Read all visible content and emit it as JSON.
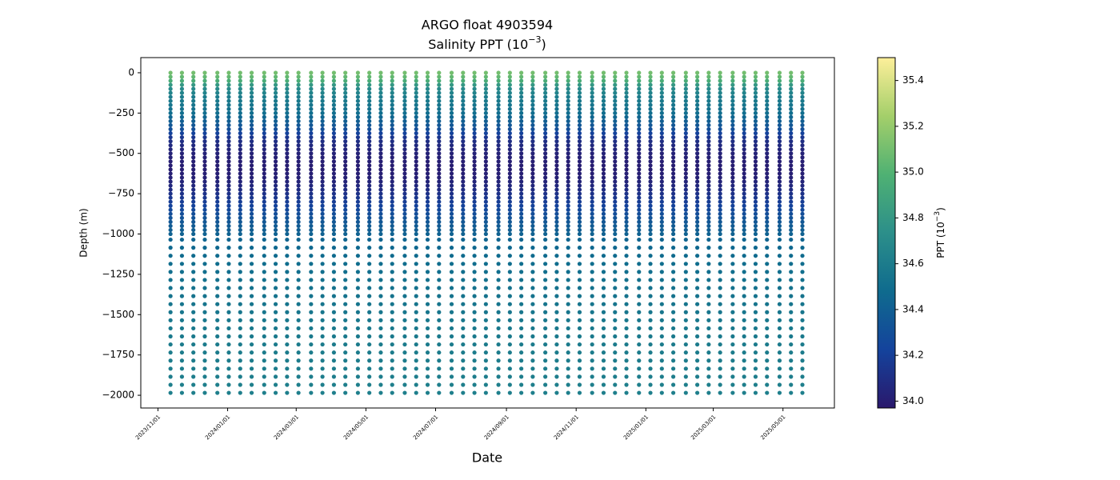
{
  "chart_data": {
    "type": "scatter",
    "title": "ARGO float 4903594",
    "subtitle": {
      "text": "Salinity PPT (10",
      "sup": "−3",
      "end": ")"
    },
    "x_label": "Date",
    "y_label": "Depth (m)",
    "colorbar_label": {
      "text": "PPT (10",
      "sup": "−3",
      "end": ")"
    },
    "x": [
      "2023-11-12",
      "2023-11-22",
      "2023-12-02",
      "2023-12-12",
      "2023-12-23",
      "2024-01-02",
      "2024-01-12",
      "2024-01-22",
      "2024-02-02",
      "2024-02-12",
      "2024-02-22",
      "2024-03-03",
      "2024-03-14",
      "2024-03-24",
      "2024-04-03",
      "2024-04-13",
      "2024-04-24",
      "2024-05-04",
      "2024-05-14",
      "2024-05-24",
      "2024-06-04",
      "2024-06-14",
      "2024-06-24",
      "2024-07-04",
      "2024-07-15",
      "2024-07-25",
      "2024-08-04",
      "2024-08-14",
      "2024-08-25",
      "2024-09-04",
      "2024-09-14",
      "2024-09-24",
      "2024-10-05",
      "2024-10-15",
      "2024-10-25",
      "2024-11-04",
      "2024-11-15",
      "2024-11-25",
      "2024-12-05",
      "2024-12-15",
      "2024-12-26",
      "2025-01-05",
      "2025-01-15",
      "2025-01-25",
      "2025-02-05",
      "2025-02-15",
      "2025-02-25",
      "2025-03-07",
      "2025-03-18",
      "2025-03-28",
      "2025-04-07",
      "2025-04-17",
      "2025-04-28",
      "2025-05-08",
      "2025-05-18"
    ],
    "depths": [
      0,
      -25,
      -50,
      -75,
      -100,
      -125,
      -150,
      -175,
      -200,
      -225,
      -250,
      -275,
      -300,
      -325,
      -350,
      -375,
      -400,
      -425,
      -450,
      -475,
      -500,
      -525,
      -550,
      -575,
      -600,
      -625,
      -650,
      -675,
      -700,
      -725,
      -750,
      -775,
      -800,
      -825,
      -850,
      -875,
      -900,
      -925,
      -950,
      -975,
      -1000,
      -1035,
      -1085,
      -1135,
      -1185,
      -1235,
      -1285,
      -1335,
      -1385,
      -1435,
      -1485,
      -1535,
      -1585,
      -1635,
      -1685,
      -1735,
      -1785,
      -1835,
      -1885,
      -1935,
      -1985
    ],
    "salinity": [
      35.1,
      35.05,
      34.95,
      34.8,
      34.7,
      34.65,
      34.6,
      34.58,
      34.55,
      34.52,
      34.5,
      34.45,
      34.4,
      34.35,
      34.3,
      34.22,
      34.15,
      34.1,
      34.07,
      34.05,
      34.03,
      34.02,
      34.01,
      34.0,
      34.0,
      34.01,
      34.02,
      34.04,
      34.06,
      34.09,
      34.12,
      34.15,
      34.19,
      34.22,
      34.26,
      34.29,
      34.32,
      34.35,
      34.38,
      34.4,
      34.42,
      34.44,
      34.46,
      34.48,
      34.5,
      34.51,
      34.52,
      34.53,
      34.54,
      34.55,
      34.56,
      34.57,
      34.58,
      34.58,
      34.59,
      34.6,
      34.6,
      34.61,
      34.61,
      34.62,
      34.62
    ],
    "xlim": [
      "2023-10-17",
      "2025-06-15"
    ],
    "xticks": [
      {
        "value": "2023-11-01",
        "label": "2023/11/01"
      },
      {
        "value": "2024-01-01",
        "label": "2024/01/01"
      },
      {
        "value": "2024-03-01",
        "label": "2024/03/01"
      },
      {
        "value": "2024-05-01",
        "label": "2024/05/01"
      },
      {
        "value": "2024-07-01",
        "label": "2024/07/01"
      },
      {
        "value": "2024-09-01",
        "label": "2024/09/01"
      },
      {
        "value": "2024-11-01",
        "label": "2024/11/01"
      },
      {
        "value": "2025-01-01",
        "label": "2025/01/01"
      },
      {
        "value": "2025-03-01",
        "label": "2025/03/01"
      },
      {
        "value": "2025-05-01",
        "label": "2025/05/01"
      }
    ],
    "ylim": [
      -2079,
      94
    ],
    "yticks": [
      {
        "value": -2000,
        "label": "−2000"
      },
      {
        "value": -1750,
        "label": "−1750"
      },
      {
        "value": -1500,
        "label": "−1500"
      },
      {
        "value": -1250,
        "label": "−1250"
      },
      {
        "value": -1000,
        "label": "−1000"
      },
      {
        "value": -750,
        "label": "−750"
      },
      {
        "value": -500,
        "label": "−500"
      },
      {
        "value": -250,
        "label": "−250"
      },
      0
    ],
    "clim": [
      33.97,
      35.5
    ],
    "cticks": [
      {
        "value": 34.0,
        "label": "34.0"
      },
      34.2,
      34.4,
      34.6,
      34.8,
      {
        "value": 35.0,
        "label": "35.0"
      },
      35.2,
      35.4
    ],
    "colormap": [
      "#2a186c",
      "#14439c",
      "#0f6b8e",
      "#2c8f8a",
      "#4fb173",
      "#a4cf6a",
      "#fdef9a"
    ]
  }
}
